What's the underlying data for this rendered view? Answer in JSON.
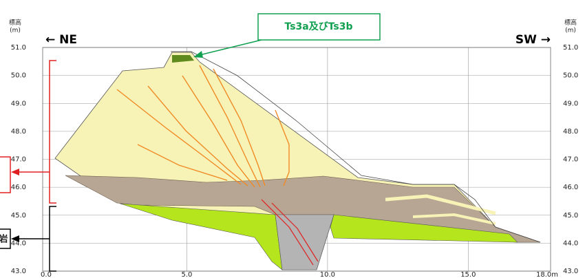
{
  "directions": {
    "left": "← NE",
    "right": "SW →"
  },
  "axis": {
    "unit": "標高",
    "unit_sub": "(m)",
    "yticks": [
      {
        "value": 43,
        "label": "43.0"
      },
      {
        "value": 44,
        "label": "44.0"
      },
      {
        "value": 45,
        "label": "45.0"
      },
      {
        "value": 46,
        "label": "46.0"
      },
      {
        "value": 47,
        "label": "47.0"
      },
      {
        "value": 48,
        "label": "48.0"
      },
      {
        "value": 49,
        "label": "49.0"
      },
      {
        "value": 50,
        "label": "50.0"
      },
      {
        "value": 51,
        "label": "51.0"
      }
    ],
    "xticks": [
      {
        "value": 0,
        "label": "0.0"
      },
      {
        "value": 5,
        "label": "5.0"
      },
      {
        "value": 10,
        "label": "10.0"
      },
      {
        "value": 15,
        "label": "15.0"
      },
      {
        "value": 18,
        "label": "18.0m"
      }
    ]
  },
  "callout": "Ts3a及びTs3b",
  "rock_label": "岩"
}
